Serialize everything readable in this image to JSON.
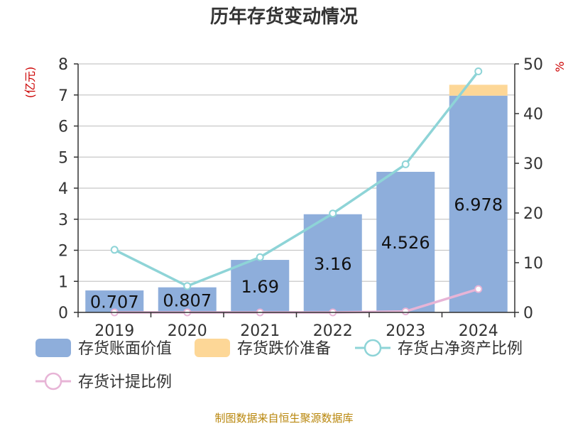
{
  "chart_data": {
    "type": "bar",
    "title": "历年存货变动情况",
    "categories": [
      "2019",
      "2020",
      "2021",
      "2022",
      "2023",
      "2024"
    ],
    "series": [
      {
        "name": "存货账面价值",
        "type": "bar",
        "axis": "left",
        "color": "#8eaedb",
        "values": [
          0.707,
          0.807,
          1.69,
          3.16,
          4.526,
          6.978
        ]
      },
      {
        "name": "存货跌价准备",
        "type": "bar",
        "axis": "left",
        "color": "#fdd797",
        "values": [
          0,
          0,
          0,
          0,
          0,
          0.35
        ]
      },
      {
        "name": "存货占净资产比例",
        "type": "line",
        "axis": "right",
        "color": "#8ed4d7",
        "values": [
          12.6,
          5.3,
          11.1,
          19.9,
          29.8,
          48.5
        ]
      },
      {
        "name": "存货计提比例",
        "type": "line",
        "axis": "right",
        "color": "#e7b4d6",
        "values": [
          0,
          0,
          0,
          0,
          0.2,
          4.7
        ]
      }
    ],
    "bar_labels": [
      "0.707",
      "0.807",
      "1.69",
      "3.16",
      "4.526",
      "6.978"
    ],
    "ylabel_left": "(亿元)",
    "ylabel_right": "%",
    "ylim_left": [
      0,
      8
    ],
    "yticks_left": [
      0,
      1,
      2,
      3,
      4,
      5,
      6,
      7,
      8
    ],
    "ylim_right": [
      0,
      50
    ],
    "yticks_right": [
      0,
      10,
      20,
      30,
      40,
      50
    ],
    "grid": true,
    "legend_position": "bottom"
  },
  "source_text": "制图数据来自恒生聚源数据库"
}
